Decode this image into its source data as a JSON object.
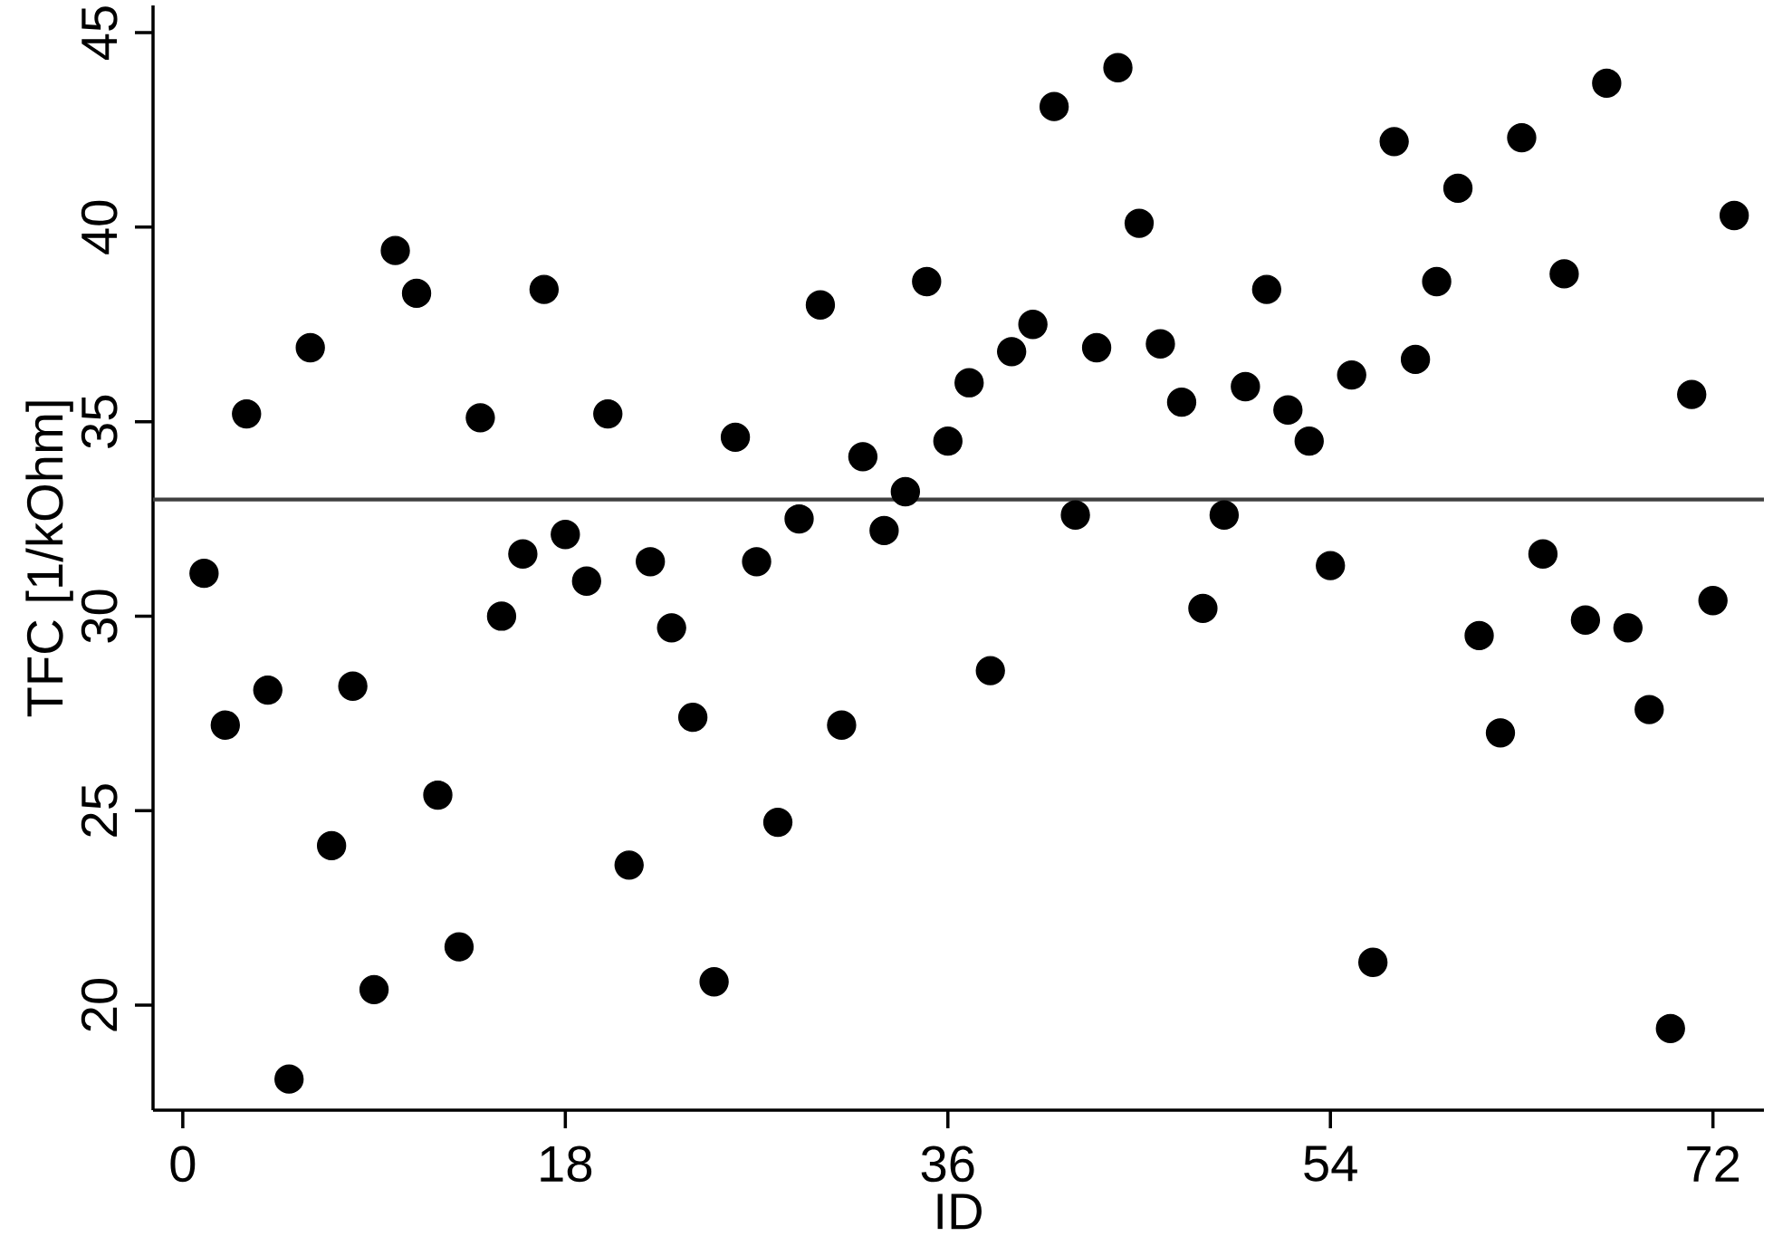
{
  "chart_data": {
    "type": "scatter",
    "xlabel": "ID",
    "ylabel": "TFC [1/kOhm]",
    "x": [
      1,
      2,
      3,
      4,
      5,
      6,
      7,
      8,
      9,
      10,
      11,
      12,
      13,
      14,
      15,
      16,
      17,
      18,
      19,
      20,
      21,
      22,
      23,
      24,
      25,
      26,
      27,
      28,
      29,
      30,
      31,
      32,
      33,
      34,
      35,
      36,
      37,
      38,
      39,
      40,
      41,
      42,
      43,
      44,
      45,
      46,
      47,
      48,
      49,
      50,
      51,
      52,
      53,
      54,
      55,
      56,
      57,
      58,
      59,
      60,
      61,
      62,
      63,
      64,
      65,
      66,
      67,
      68,
      69,
      70,
      71,
      72,
      73
    ],
    "values": [
      31.1,
      27.2,
      35.2,
      28.1,
      18.1,
      36.9,
      24.1,
      28.2,
      20.4,
      39.4,
      38.3,
      25.4,
      21.5,
      35.1,
      30.0,
      31.6,
      38.4,
      32.1,
      30.9,
      35.2,
      23.6,
      31.4,
      29.7,
      27.4,
      20.6,
      34.6,
      31.4,
      24.7,
      32.5,
      38.0,
      27.2,
      34.1,
      32.2,
      33.2,
      38.6,
      34.5,
      36.0,
      28.6,
      36.8,
      37.5,
      43.1,
      32.6,
      36.9,
      44.1,
      40.1,
      37.0,
      35.5,
      30.2,
      32.6,
      35.9,
      38.4,
      35.3,
      34.5,
      31.3,
      36.2,
      21.1,
      42.2,
      36.6,
      38.6,
      41.0,
      29.5,
      27.0,
      42.3,
      31.6,
      38.8,
      29.9,
      43.7,
      29.7,
      27.6,
      19.4,
      35.7,
      30.4,
      40.3
    ],
    "color": "#000000",
    "marker": "circle",
    "xlim": [
      -1.4,
      74.4
    ],
    "ylim": [
      17.3,
      45.7
    ],
    "xticks": [
      0,
      18,
      36,
      54,
      72
    ],
    "yticks": [
      20,
      25,
      30,
      35,
      40,
      45
    ],
    "ref_lines": [
      {
        "axis": "y",
        "value": 33,
        "color": "#404040"
      }
    ]
  }
}
